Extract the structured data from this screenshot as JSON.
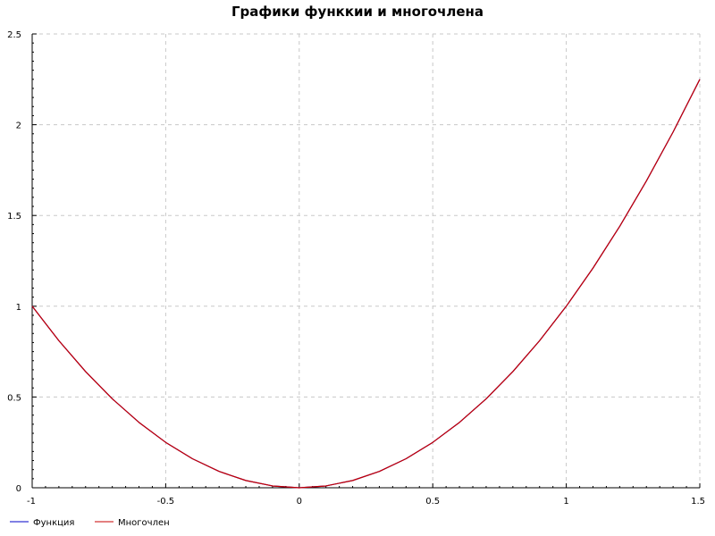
{
  "chart_data": {
    "type": "line",
    "title": "Графики функкии и многочлена",
    "xlabel": "",
    "ylabel": "",
    "xlim": [
      -1,
      1.5
    ],
    "ylim": [
      0,
      2.5
    ],
    "x_ticks": [
      -1,
      -0.5,
      0,
      0.5,
      1,
      1.5
    ],
    "x_tick_labels": [
      "-1",
      "-0.5",
      "0",
      "0.5",
      "1",
      "1.5"
    ],
    "y_ticks": [
      0,
      0.5,
      1,
      1.5,
      2,
      2.5
    ],
    "y_tick_labels": [
      "0",
      "0.5",
      "1",
      "1.5",
      "2",
      "2.5"
    ],
    "grid": true,
    "legend_position": "bottom-left",
    "series": [
      {
        "name": "Функция",
        "color": "#0000c8",
        "x": [
          -1,
          -0.9,
          -0.8,
          -0.7,
          -0.6,
          -0.5,
          -0.4,
          -0.3,
          -0.2,
          -0.1,
          0,
          0.1,
          0.2,
          0.3,
          0.4,
          0.5,
          0.6,
          0.7,
          0.8,
          0.9,
          1,
          1.1,
          1.2,
          1.3,
          1.4,
          1.5
        ],
        "values": [
          1,
          0.81,
          0.64,
          0.49,
          0.36,
          0.25,
          0.16,
          0.09,
          0.04,
          0.01,
          0,
          0.01,
          0.04,
          0.09,
          0.16,
          0.25,
          0.36,
          0.49,
          0.64,
          0.81,
          1,
          1.21,
          1.44,
          1.69,
          1.96,
          2.25
        ]
      },
      {
        "name": "Многочлен",
        "color": "#c80000",
        "x": [
          -1,
          -0.9,
          -0.8,
          -0.7,
          -0.6,
          -0.5,
          -0.4,
          -0.3,
          -0.2,
          -0.1,
          0,
          0.1,
          0.2,
          0.3,
          0.4,
          0.5,
          0.6,
          0.7,
          0.8,
          0.9,
          1,
          1.1,
          1.2,
          1.3,
          1.4,
          1.5
        ],
        "values": [
          1,
          0.81,
          0.64,
          0.49,
          0.36,
          0.25,
          0.16,
          0.09,
          0.04,
          0.01,
          0,
          0.01,
          0.04,
          0.09,
          0.16,
          0.25,
          0.36,
          0.49,
          0.64,
          0.81,
          1,
          1.21,
          1.44,
          1.69,
          1.96,
          2.25
        ]
      }
    ]
  }
}
